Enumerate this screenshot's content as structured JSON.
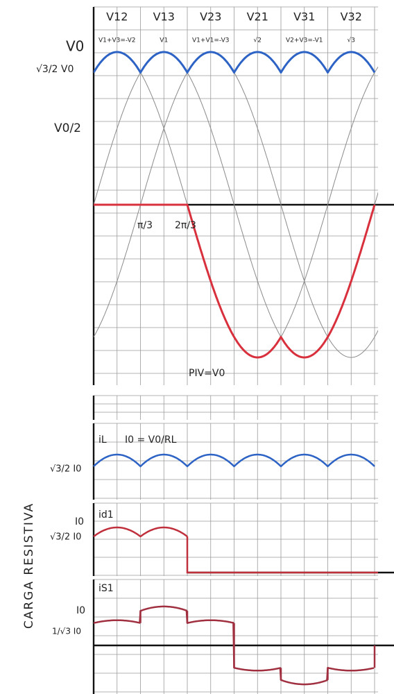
{
  "phase_labels": [
    {
      "name": "V12",
      "relation": "V1+V3=-V2"
    },
    {
      "name": "V13",
      "relation": "V1"
    },
    {
      "name": "V23",
      "relation": "V1+V1=-V3"
    },
    {
      "name": "V21",
      "relation": "√2"
    },
    {
      "name": "V31",
      "relation": "V2+V3=-V1"
    },
    {
      "name": "V32",
      "relation": "√3"
    }
  ],
  "voltage_axis": {
    "peak": "V0",
    "cusp": "√3/2 V0",
    "half": "V0/2"
  },
  "angle_labels": [
    "π/3",
    "2π/3"
  ],
  "piv": "PIV=V0",
  "load_current": {
    "name": "iL",
    "formula": "I0 = V0/RL",
    "cusp": "√3/2 I0"
  },
  "diode_current": {
    "name": "id1",
    "peak": "I0",
    "cusp": "√3/2 I0"
  },
  "source_current": {
    "name": "iS1",
    "peak": "I0",
    "low": "1/√3 I0"
  },
  "side_label": "CARGA RESISTIVA"
}
